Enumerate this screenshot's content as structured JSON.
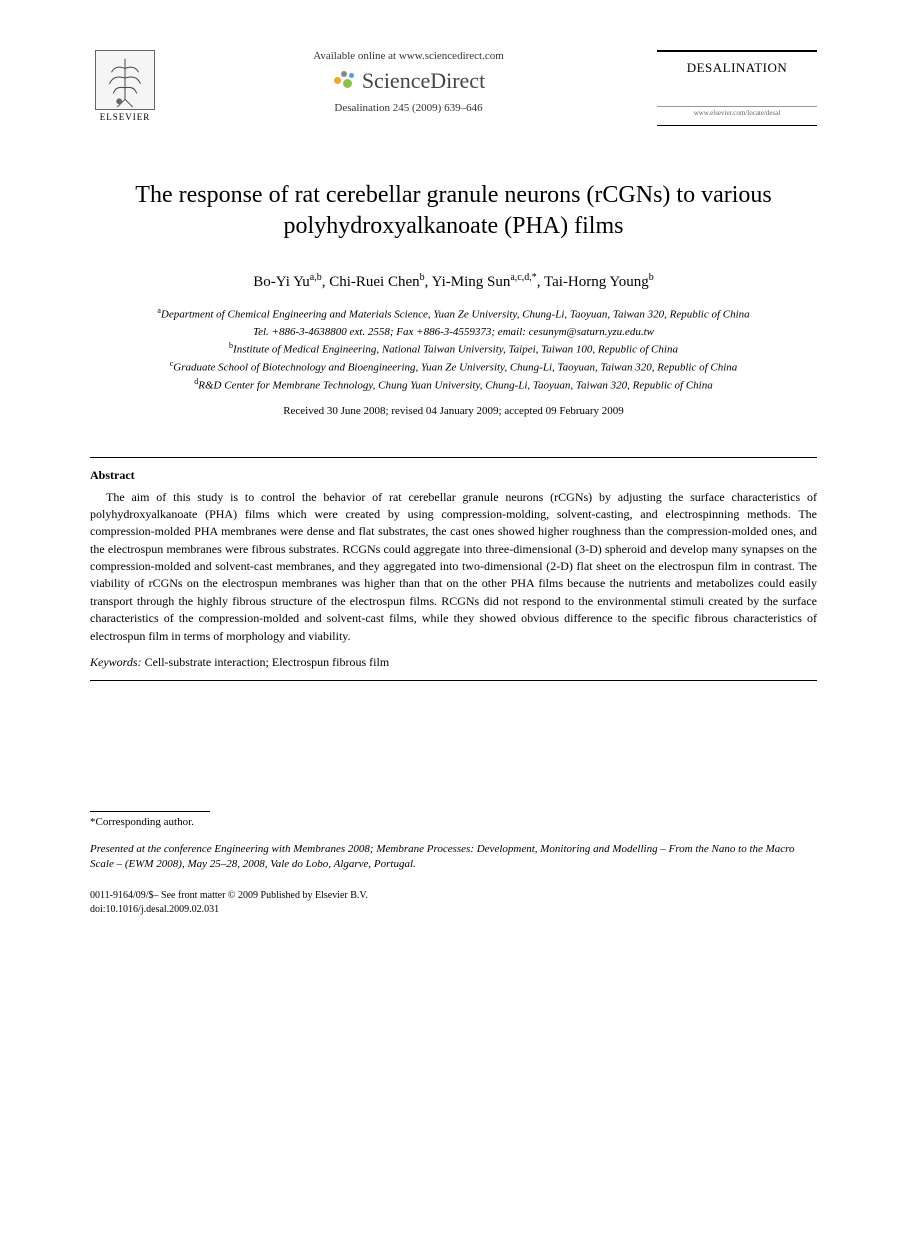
{
  "header": {
    "publisher": "ELSEVIER",
    "available_text": "Available online at www.sciencedirect.com",
    "sd_brand": "ScienceDirect",
    "citation": "Desalination 245 (2009) 639–646",
    "journal_name": "DESALINATION",
    "journal_url": "www.elsevier.com/locate/desal"
  },
  "colors": {
    "sd_dot_orange": "#f5a623",
    "sd_dot_green": "#8bc34a",
    "sd_dot_blue": "#5b9bd5",
    "sd_dot_gray": "#888888",
    "text": "#000000",
    "bg": "#ffffff"
  },
  "title": "The response of rat cerebellar granule neurons (rCGNs) to various polyhydroxyalkanoate (PHA) films",
  "authors_html": "Bo-Yi Yu<sup>a,b</sup>, Chi-Ruei Chen<sup>b</sup>, Yi-Ming Sun<sup>a,c,d,*</sup>, Tai-Horng Young<sup>b</sup>",
  "affiliations": [
    {
      "sup": "a",
      "text": "Department of Chemical Engineering and Materials Science, Yuan Ze University, Chung-Li, Taoyuan, Taiwan 320, Republic of China"
    },
    {
      "sup": "",
      "text": "Tel. +886-3-4638800 ext. 2558; Fax +886-3-4559373; email: cesunym@saturn.yzu.edu.tw"
    },
    {
      "sup": "b",
      "text": "Institute of Medical Engineering, National Taiwan University, Taipei, Taiwan 100, Republic of China"
    },
    {
      "sup": "c",
      "text": "Graduate School of Biotechnology and Bioengineering, Yuan Ze University, Chung-Li, Taoyuan, Taiwan 320, Republic of China"
    },
    {
      "sup": "d",
      "text": "R&D Center for Membrane Technology, Chung Yuan University, Chung-Li, Taoyuan, Taiwan 320, Republic of China"
    }
  ],
  "dates": "Received 30 June 2008; revised 04 January 2009; accepted 09 February 2009",
  "abstract": {
    "heading": "Abstract",
    "body": "The aim of this study is to control the behavior of rat cerebellar granule neurons (rCGNs) by adjusting the surface characteristics of polyhydroxyalkanoate (PHA) films which were created by using compression-molding, solvent-casting, and electrospinning methods. The compression-molded PHA membranes were dense and flat substrates, the cast ones showed higher roughness than the compression-molded ones, and the electrospun membranes were fibrous substrates. RCGNs could aggregate into three-dimensional (3-D) spheroid and develop many synapses on the compression-molded and solvent-cast membranes, and they aggregated into two-dimensional (2-D) flat sheet on the electrospun film in contrast. The viability of rCGNs on the electrospun membranes was higher than that on the other PHA films because the nutrients and metabolizes could easily transport through the highly fibrous structure of the electrospun films. RCGNs did not respond to the environmental stimuli created by the surface characteristics of the compression-molded and solvent-cast films, while they showed obvious difference to the specific fibrous characteristics of electrospun film in terms of morphology and viability."
  },
  "keywords": {
    "label": "Keywords:",
    "text": " Cell-substrate interaction; Electrospun fibrous film"
  },
  "corresponding": "*Corresponding author.",
  "presented": "Presented at the conference Engineering with Membranes 2008; Membrane Processes: Development, Monitoring and Modelling – From the Nano to the Macro Scale – (EWM 2008), May 25–28, 2008, Vale do Lobo, Algarve, Portugal.",
  "copyright": {
    "line1": "0011-9164/09/$– See front matter © 2009 Published by Elsevier B.V.",
    "line2": "doi:10.1016/j.desal.2009.02.031"
  }
}
